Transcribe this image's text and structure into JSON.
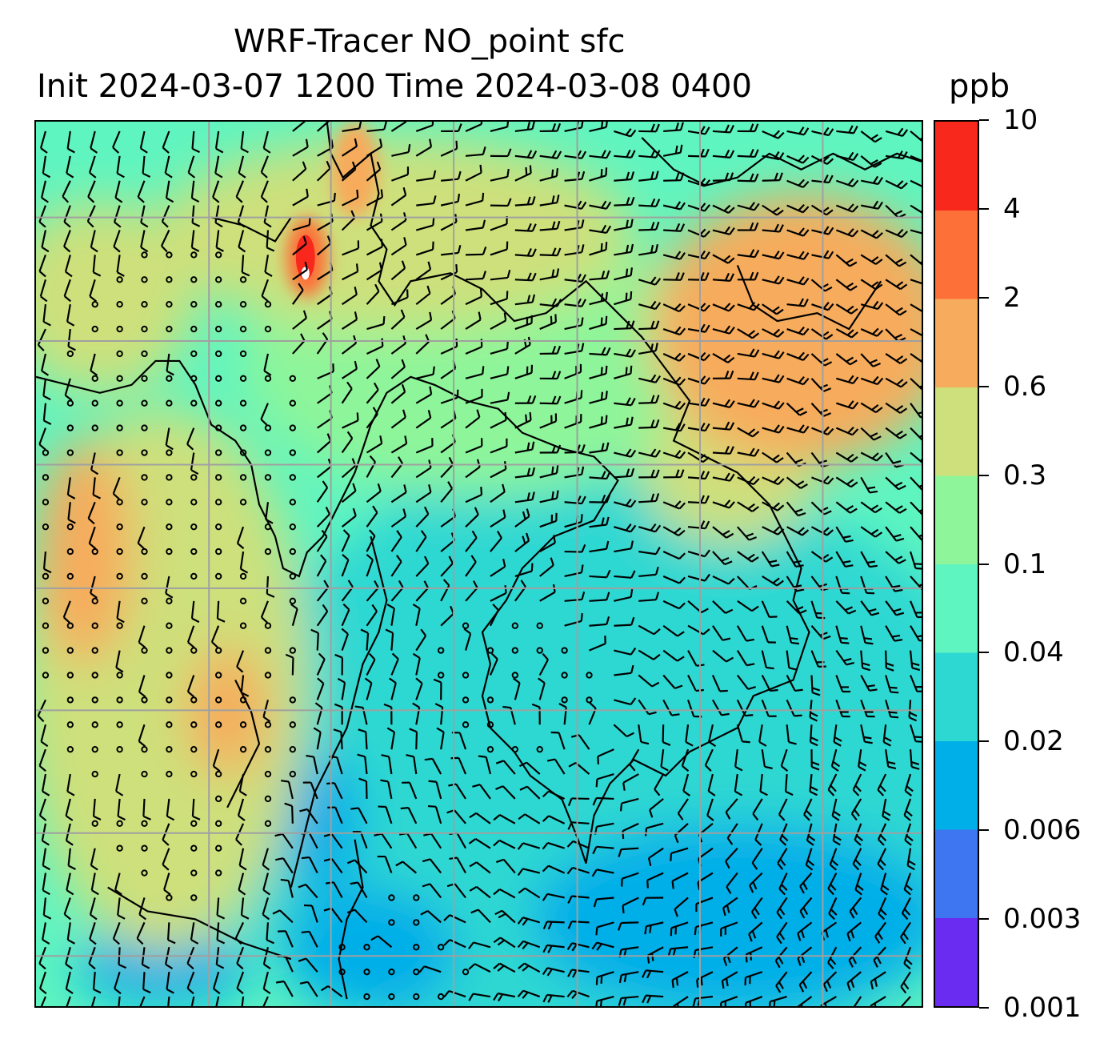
{
  "title": {
    "line1": "WRF-Tracer NO_point sfc",
    "line2": "Init 2024-03-07 1200 Time 2024-03-08 0400",
    "unit": "ppb"
  },
  "colorbar": {
    "levels": [
      "0.001",
      "0.003",
      "0.006",
      "0.02",
      "0.04",
      "0.1",
      "0.3",
      "0.6",
      "2",
      "4",
      "10"
    ],
    "colors": [
      "#6a2cf0",
      "#3e75f0",
      "#00aee8",
      "#2ed8d2",
      "#5ff5c0",
      "#8ef59a",
      "#cde07c",
      "#f7ab5c",
      "#fd7038",
      "#f8281c"
    ]
  },
  "map": {
    "background_colors": {
      "ocean_low": "#00aee8",
      "ocean_mid": "#2ed8d2",
      "land_low": "#5ff5c0",
      "land_mid": "#8ef59a",
      "land_high": "#cde07c",
      "hot": "#f7ab5c",
      "source": "#f8281c"
    },
    "gridline_color": "#a0a0a0",
    "coastline_color": "#000000",
    "barb_color": "#000000"
  }
}
